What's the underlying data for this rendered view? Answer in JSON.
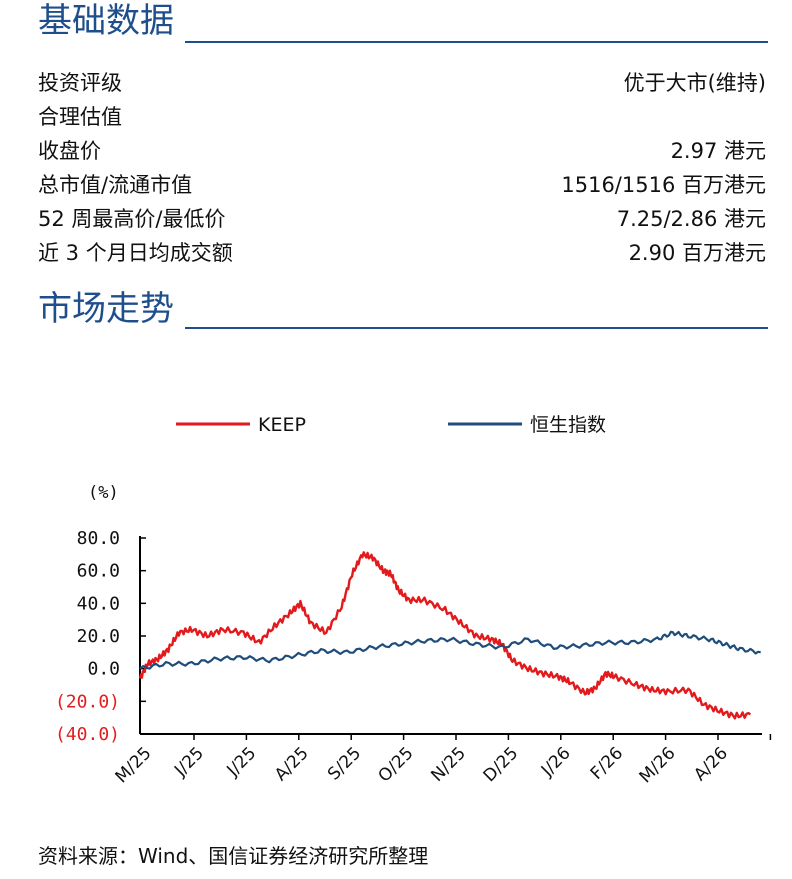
{
  "sections": {
    "basic": {
      "title": "基础数据"
    },
    "market": {
      "title": "市场走势"
    }
  },
  "basic_rows": [
    {
      "label": "投资评级",
      "value": "优于大市(维持)"
    },
    {
      "label": "合理估值",
      "value": ""
    },
    {
      "label": "收盘价",
      "value": "2.97 港元"
    },
    {
      "label": "总市值/流通市值",
      "value": "1516/1516 百万港元"
    },
    {
      "label": "52 周最高价/最低价",
      "value": "7.25/2.86 港元"
    },
    {
      "label": "近 3 个月日均成交额",
      "value": "2.90 百万港元"
    }
  ],
  "source": "资料来源：Wind、国信证券经济研究所整理",
  "chart_data": {
    "type": "line",
    "unit_label": "(%)",
    "x": [
      "M/25",
      "J/25",
      "J/25",
      "A/25",
      "S/25",
      "O/25",
      "N/25",
      "D/25",
      "J/26",
      "F/26",
      "M/26",
      "A/26"
    ],
    "ytick_labels": [
      "80.0",
      "60.0",
      "40.0",
      "20.0",
      "0.0",
      "(20.0)",
      "(40.0)"
    ],
    "ytick_values": [
      80,
      60,
      40,
      20,
      0,
      -20,
      -40
    ],
    "ylim": [
      -40,
      80
    ],
    "negative_label_color": "#e02020",
    "series": [
      {
        "name": "KEEP",
        "color": "#e3191c",
        "points": [
          [
            0,
            -6
          ],
          [
            0.15,
            3
          ],
          [
            0.35,
            6
          ],
          [
            0.55,
            12
          ],
          [
            0.75,
            22
          ],
          [
            1,
            24
          ],
          [
            1.3,
            20
          ],
          [
            1.6,
            24
          ],
          [
            2,
            22
          ],
          [
            2.3,
            16
          ],
          [
            2.6,
            26
          ],
          [
            2.9,
            34
          ],
          [
            3.1,
            40
          ],
          [
            3.3,
            28
          ],
          [
            3.6,
            22
          ],
          [
            3.9,
            38
          ],
          [
            4.1,
            58
          ],
          [
            4.3,
            70
          ],
          [
            4.5,
            68
          ],
          [
            4.7,
            60
          ],
          [
            4.85,
            58
          ],
          [
            5.0,
            48
          ],
          [
            5.2,
            42
          ],
          [
            5.5,
            42
          ],
          [
            5.9,
            36
          ],
          [
            6.2,
            28
          ],
          [
            6.5,
            20
          ],
          [
            6.8,
            18
          ],
          [
            7.0,
            15
          ],
          [
            7.2,
            5
          ],
          [
            7.5,
            0
          ],
          [
            7.8,
            -3
          ],
          [
            8.1,
            -5
          ],
          [
            8.3,
            -8
          ],
          [
            8.6,
            -15
          ],
          [
            8.8,
            -12
          ],
          [
            9.0,
            -3
          ],
          [
            9.2,
            -5
          ],
          [
            9.6,
            -10
          ],
          [
            9.9,
            -13
          ],
          [
            10.2,
            -14
          ],
          [
            10.6,
            -13
          ],
          [
            10.9,
            -22
          ],
          [
            11.2,
            -26
          ],
          [
            11.5,
            -29
          ],
          [
            11.8,
            -28
          ]
        ]
      },
      {
        "name": "恒生指数",
        "color": "#1e4d7b",
        "points": [
          [
            0,
            0
          ],
          [
            0.5,
            3
          ],
          [
            1,
            3
          ],
          [
            1.5,
            6
          ],
          [
            2,
            7
          ],
          [
            2.5,
            5
          ],
          [
            3,
            8
          ],
          [
            3.5,
            11
          ],
          [
            4,
            10
          ],
          [
            4.5,
            13
          ],
          [
            5,
            15
          ],
          [
            5.5,
            17
          ],
          [
            6,
            18
          ],
          [
            6.5,
            15
          ],
          [
            7,
            13
          ],
          [
            7.5,
            18
          ],
          [
            8,
            13
          ],
          [
            8.5,
            14
          ],
          [
            9,
            16
          ],
          [
            9.5,
            16
          ],
          [
            10,
            18
          ],
          [
            10.3,
            22
          ],
          [
            10.6,
            20
          ],
          [
            11,
            18
          ],
          [
            11.3,
            15
          ],
          [
            11.6,
            12
          ],
          [
            12,
            10
          ]
        ]
      }
    ]
  }
}
